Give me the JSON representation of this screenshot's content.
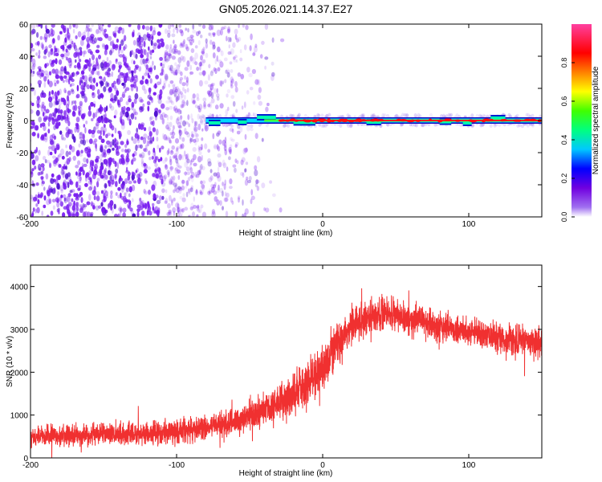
{
  "title": "GN05.2026.021.14.37.E27",
  "chart_data": [
    {
      "type": "heatmap",
      "xlabel": "Height of straight line (km)",
      "ylabel": "Frequency (Hz)",
      "xlim": [
        -200,
        150
      ],
      "ylim": [
        -60,
        60
      ],
      "x_ticks": [
        -200,
        -100,
        0,
        100
      ],
      "x_tick_labels": [
        "-200",
        "-100",
        "0",
        "100"
      ],
      "y_ticks": [
        -60,
        -40,
        -20,
        0,
        20,
        40,
        60
      ],
      "y_tick_labels": [
        "-60",
        "-40",
        "-20",
        "0",
        "20",
        "40",
        "60"
      ],
      "colorbar": {
        "label": "Normalized spectral amplitude",
        "range": [
          0,
          1
        ],
        "ticks": [
          0.0,
          0.2,
          0.4,
          0.6,
          0.8
        ],
        "tick_labels": [
          "0.0",
          "0.2",
          "0.4",
          "0.6",
          "0.8"
        ],
        "colormap": [
          "#ffffff",
          "#7000e0",
          "#0000ff",
          "#00c8ff",
          "#00ff40",
          "#ffff00",
          "#ff8000",
          "#ff0000",
          "#ff40a0"
        ]
      },
      "features": {
        "noise_region_x": [
          -200,
          -35
        ],
        "signal_band_start_x": -80,
        "signal_frequency_hz": 0,
        "signal_band_color": "#ff2020",
        "noise_color": "#7a1ef0"
      }
    },
    {
      "type": "line",
      "xlabel": "Height of straight line (km)",
      "ylabel": "SNR (10 * v/v)",
      "xlim": [
        -200,
        150
      ],
      "ylim": [
        0,
        4500
      ],
      "x_ticks": [
        -200,
        -100,
        0,
        100
      ],
      "x_tick_labels": [
        "-200",
        "-100",
        "0",
        "100"
      ],
      "y_ticks": [
        0,
        1000,
        2000,
        3000,
        4000
      ],
      "y_tick_labels": [
        "0",
        "1000",
        "2000",
        "3000",
        "4000"
      ],
      "series_color": "#f03030",
      "envelope": [
        {
          "x": -200,
          "mean": 500,
          "spread": 350
        },
        {
          "x": -150,
          "mean": 550,
          "spread": 350
        },
        {
          "x": -100,
          "mean": 600,
          "spread": 400
        },
        {
          "x": -80,
          "mean": 700,
          "spread": 400
        },
        {
          "x": -60,
          "mean": 850,
          "spread": 450
        },
        {
          "x": -40,
          "mean": 1100,
          "spread": 550
        },
        {
          "x": -20,
          "mean": 1500,
          "spread": 700
        },
        {
          "x": 0,
          "mean": 2100,
          "spread": 800
        },
        {
          "x": 10,
          "mean": 2700,
          "spread": 700
        },
        {
          "x": 20,
          "mean": 3100,
          "spread": 600
        },
        {
          "x": 40,
          "mean": 3400,
          "spread": 550
        },
        {
          "x": 60,
          "mean": 3250,
          "spread": 500
        },
        {
          "x": 80,
          "mean": 3050,
          "spread": 500
        },
        {
          "x": 100,
          "mean": 2950,
          "spread": 500
        },
        {
          "x": 120,
          "mean": 2800,
          "spread": 500
        },
        {
          "x": 150,
          "mean": 2650,
          "spread": 500
        }
      ]
    }
  ]
}
